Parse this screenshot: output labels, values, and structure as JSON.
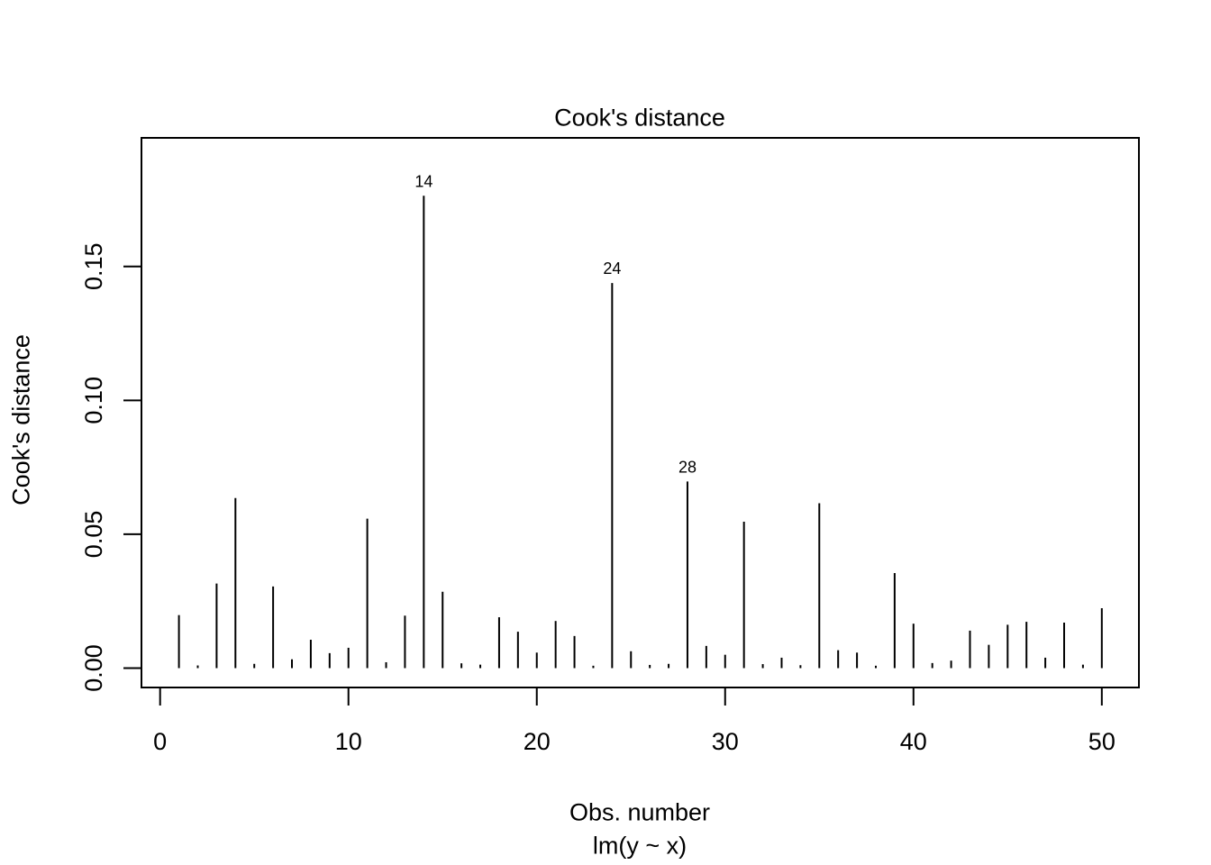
{
  "page": {
    "background": "#ffffff",
    "foreground": "#000000"
  },
  "chart": {
    "title": "Cook's distance",
    "xlabel": "Obs. number",
    "sublabel": "lm(y ~ x)",
    "ylabel": "Cook's distance"
  },
  "chart_data": {
    "type": "bar",
    "subtype": "vertical-needle-lines (R base plot type='h')",
    "title": "Cook's distance",
    "xlabel": "Obs. number",
    "subtitle": "lm(y ~ x)",
    "ylabel": "Cook's distance",
    "x": [
      1,
      2,
      3,
      4,
      5,
      6,
      7,
      8,
      9,
      10,
      11,
      12,
      13,
      14,
      15,
      16,
      17,
      18,
      19,
      20,
      21,
      22,
      23,
      24,
      25,
      26,
      27,
      28,
      29,
      30,
      31,
      32,
      33,
      34,
      35,
      36,
      37,
      38,
      39,
      40,
      41,
      42,
      43,
      44,
      45,
      46,
      47,
      48,
      49,
      50
    ],
    "values": [
      0.0198,
      0.001,
      0.0316,
      0.0635,
      0.0016,
      0.0305,
      0.0033,
      0.0106,
      0.0056,
      0.0076,
      0.0558,
      0.0022,
      0.0196,
      0.1764,
      0.0285,
      0.0018,
      0.0013,
      0.019,
      0.0136,
      0.0058,
      0.0176,
      0.012,
      0.0009,
      0.1438,
      0.0063,
      0.0012,
      0.0016,
      0.0697,
      0.0083,
      0.005,
      0.0547,
      0.0015,
      0.0039,
      0.0011,
      0.0616,
      0.0067,
      0.0058,
      0.0009,
      0.0355,
      0.0166,
      0.0019,
      0.0028,
      0.014,
      0.0087,
      0.0162,
      0.0173,
      0.0039,
      0.017,
      0.0013,
      0.0224
    ],
    "annotations": [
      {
        "x": 14,
        "label": "14",
        "value": 0.1764
      },
      {
        "x": 24,
        "label": "24",
        "value": 0.1438
      },
      {
        "x": 28,
        "label": "28",
        "value": 0.0697
      }
    ],
    "x_ticks": [
      0,
      10,
      20,
      30,
      40,
      50
    ],
    "x_tick_labels": [
      "0",
      "10",
      "20",
      "30",
      "40",
      "50"
    ],
    "y_ticks": [
      0.0,
      0.05,
      0.1,
      0.15
    ],
    "y_tick_labels": [
      "0.00",
      "0.05",
      "0.10",
      "0.15"
    ],
    "xlim": [
      -0.99,
      51.97
    ],
    "ylim": [
      -0.00723,
      0.19802
    ],
    "grid": false,
    "legend": null,
    "bar_color": "#000000",
    "axis_color": "#000000"
  }
}
